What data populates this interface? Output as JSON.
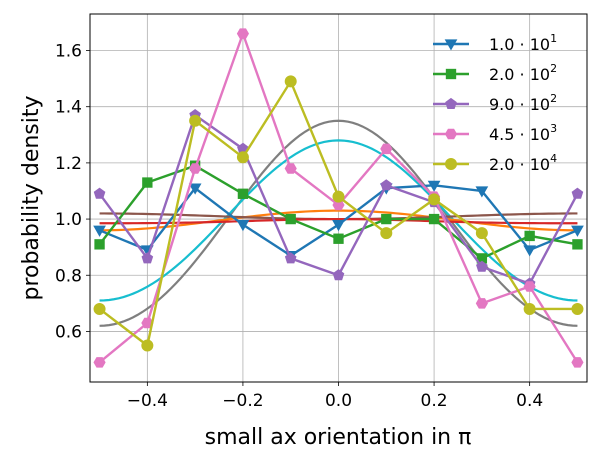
{
  "chart_data": {
    "type": "line",
    "xlabel": "small ax orientation  in π",
    "ylabel": "probability density",
    "xlim": [
      -0.52,
      0.52
    ],
    "ylim": [
      0.42,
      1.73
    ],
    "xticks": [
      -0.4,
      -0.2,
      0.0,
      0.2,
      0.4
    ],
    "xtick_labels": [
      "−0.4",
      "−0.2",
      "0.0",
      "0.2",
      "0.4"
    ],
    "yticks": [
      0.6,
      0.8,
      1.0,
      1.2,
      1.4,
      1.6
    ],
    "ytick_labels": [
      "0.6",
      "0.8",
      "1.0",
      "1.2",
      "1.4",
      "1.6"
    ],
    "grid": true,
    "legend_position": "top-right",
    "x": [
      -0.5,
      -0.4,
      -0.3,
      -0.2,
      -0.1,
      0.0,
      0.1,
      0.2,
      0.3,
      0.4,
      0.5
    ],
    "series": [
      {
        "name_base": "1.0 · 10",
        "name_exp": "1",
        "color": "#1f77b4",
        "marker": "triangle-down",
        "values": [
          0.96,
          0.89,
          1.11,
          0.98,
          0.87,
          0.98,
          1.11,
          1.12,
          1.1,
          0.89,
          0.96
        ]
      },
      {
        "name_base": "2.0 · 10",
        "name_exp": "2",
        "color": "#2ca02c",
        "marker": "square",
        "values": [
          0.91,
          1.13,
          1.19,
          1.09,
          1.0,
          0.93,
          1.0,
          1.0,
          0.86,
          0.94,
          0.91
        ]
      },
      {
        "name_base": "9.0 · 10",
        "name_exp": "2",
        "color": "#9467bd",
        "marker": "pentagon",
        "values": [
          1.09,
          0.86,
          1.37,
          1.25,
          0.86,
          0.8,
          1.12,
          1.06,
          0.83,
          0.77,
          1.09
        ]
      },
      {
        "name_base": "4.5 · 10",
        "name_exp": "3",
        "color": "#e377c2",
        "marker": "hexagon",
        "values": [
          0.49,
          0.63,
          1.18,
          1.66,
          1.18,
          1.05,
          1.25,
          1.08,
          0.7,
          0.76,
          0.49
        ]
      },
      {
        "name_base": "2.0 · 10",
        "name_exp": "4",
        "color": "#bcbd22",
        "marker": "circle",
        "values": [
          0.68,
          0.55,
          1.35,
          1.22,
          1.49,
          1.08,
          0.95,
          1.07,
          0.95,
          0.68,
          0.68
        ]
      }
    ],
    "fit_curves": [
      {
        "color": "#7f7f7f",
        "center": 1.35,
        "edge": 0.62,
        "mid": 0.96
      },
      {
        "color": "#17becf",
        "center": 1.28,
        "edge": 0.71,
        "mid": 0.98
      },
      {
        "color": "#ff7f0e",
        "center": 1.03,
        "edge": 0.96,
        "mid": 0.995
      },
      {
        "color": "#8c564b",
        "center": 1.0,
        "edge": 1.02,
        "mid": 1.01
      },
      {
        "color": "#d62728",
        "center": 1.0,
        "edge": 0.985,
        "mid": 0.99
      }
    ]
  }
}
